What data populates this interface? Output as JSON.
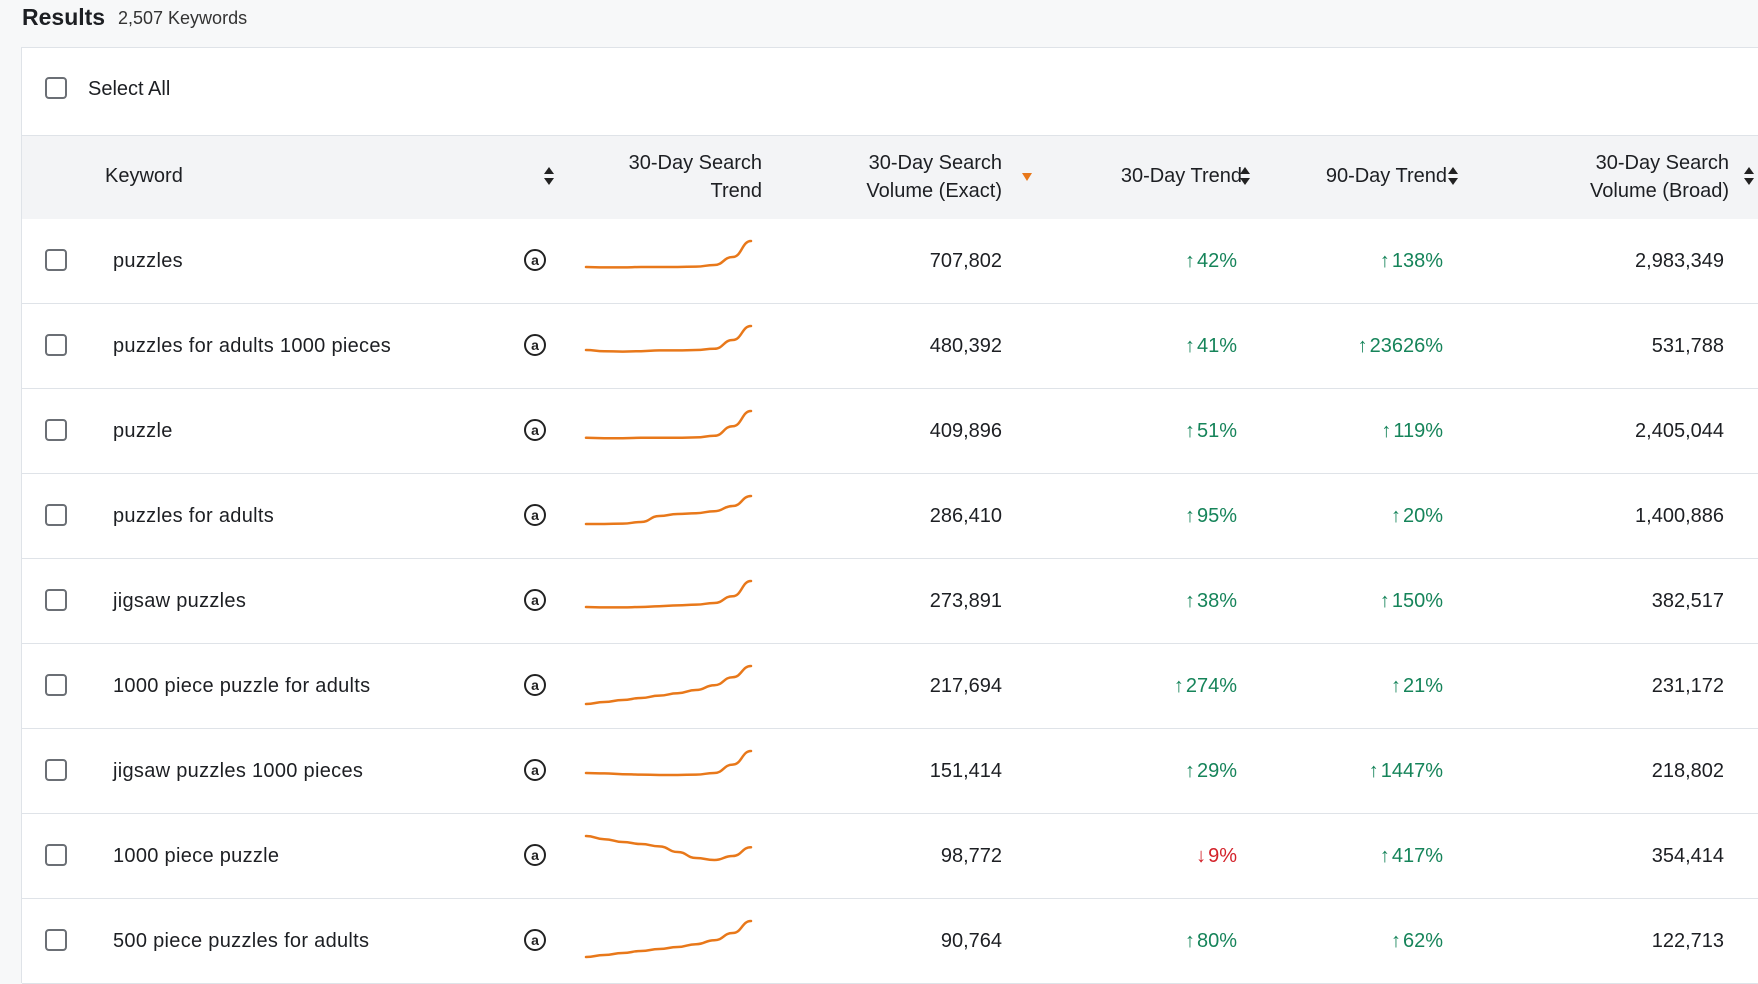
{
  "results": {
    "title": "Results",
    "count": "2,507 Keywords"
  },
  "select_all_label": "Select All",
  "columns": {
    "keyword": "Keyword",
    "search_trend": [
      "30-Day Search",
      "Trend"
    ],
    "volume_exact": [
      "30-Day Search",
      "Volume (Exact)"
    ],
    "trend_30": "30-Day Trend",
    "trend_90": "90-Day Trend",
    "volume_broad": [
      "30-Day Search",
      "Volume (Broad)"
    ]
  },
  "colors": {
    "accent_orange": "#e8781a",
    "up_green": "#16845a",
    "down_red": "#d3222a"
  },
  "amazon_icon_glyph": "a",
  "rows": [
    {
      "keyword": "puzzles",
      "exact": "707,802",
      "t30": "42%",
      "t30_dir": "up",
      "t90": "138%",
      "t90_dir": "up",
      "broad": "2,983,349",
      "spark": [
        0.35,
        0.34,
        0.34,
        0.35,
        0.35,
        0.35,
        0.36,
        0.4,
        0.6,
        1.0
      ]
    },
    {
      "keyword": "puzzles for adults 1000 pieces",
      "exact": "480,392",
      "t30": "41%",
      "t30_dir": "up",
      "t90": "23626%",
      "t90_dir": "up",
      "broad": "531,788",
      "spark": [
        0.4,
        0.37,
        0.36,
        0.37,
        0.39,
        0.39,
        0.4,
        0.43,
        0.65,
        1.0
      ]
    },
    {
      "keyword": "puzzle",
      "exact": "409,896",
      "t30": "51%",
      "t30_dir": "up",
      "t90": "119%",
      "t90_dir": "up",
      "broad": "2,405,044",
      "spark": [
        0.33,
        0.32,
        0.32,
        0.33,
        0.33,
        0.33,
        0.34,
        0.38,
        0.62,
        1.0
      ]
    },
    {
      "keyword": "puzzles for adults",
      "exact": "286,410",
      "t30": "95%",
      "t30_dir": "up",
      "t90": "20%",
      "t90_dir": "up",
      "broad": "1,400,886",
      "spark": [
        0.3,
        0.3,
        0.31,
        0.35,
        0.5,
        0.55,
        0.57,
        0.62,
        0.75,
        1.0
      ]
    },
    {
      "keyword": "jigsaw puzzles",
      "exact": "273,891",
      "t30": "38%",
      "t30_dir": "up",
      "t90": "150%",
      "t90_dir": "up",
      "broad": "382,517",
      "spark": [
        0.35,
        0.34,
        0.34,
        0.35,
        0.37,
        0.39,
        0.41,
        0.45,
        0.62,
        1.0
      ]
    },
    {
      "keyword": "1000 piece puzzle for adults",
      "exact": "217,694",
      "t30": "274%",
      "t30_dir": "up",
      "t90": "21%",
      "t90_dir": "up",
      "broad": "231,172",
      "spark": [
        0.05,
        0.1,
        0.15,
        0.2,
        0.26,
        0.32,
        0.4,
        0.52,
        0.72,
        1.0
      ]
    },
    {
      "keyword": "jigsaw puzzles 1000 pieces",
      "exact": "151,414",
      "t30": "29%",
      "t30_dir": "up",
      "t90": "1447%",
      "t90_dir": "up",
      "broad": "218,802",
      "spark": [
        0.45,
        0.44,
        0.42,
        0.41,
        0.4,
        0.4,
        0.41,
        0.45,
        0.66,
        1.0
      ]
    },
    {
      "keyword": "1000 piece puzzle",
      "exact": "98,772",
      "t30": "9%",
      "t30_dir": "down",
      "t90": "417%",
      "t90_dir": "up",
      "broad": "354,414",
      "spark": [
        1.0,
        0.92,
        0.85,
        0.8,
        0.74,
        0.6,
        0.45,
        0.4,
        0.5,
        0.72
      ]
    },
    {
      "keyword": "500 piece puzzles for adults",
      "exact": "90,764",
      "t30": "80%",
      "t30_dir": "up",
      "t90": "62%",
      "t90_dir": "up",
      "broad": "122,713",
      "spark": [
        0.1,
        0.15,
        0.2,
        0.25,
        0.3,
        0.35,
        0.42,
        0.52,
        0.7,
        1.0
      ]
    }
  ]
}
